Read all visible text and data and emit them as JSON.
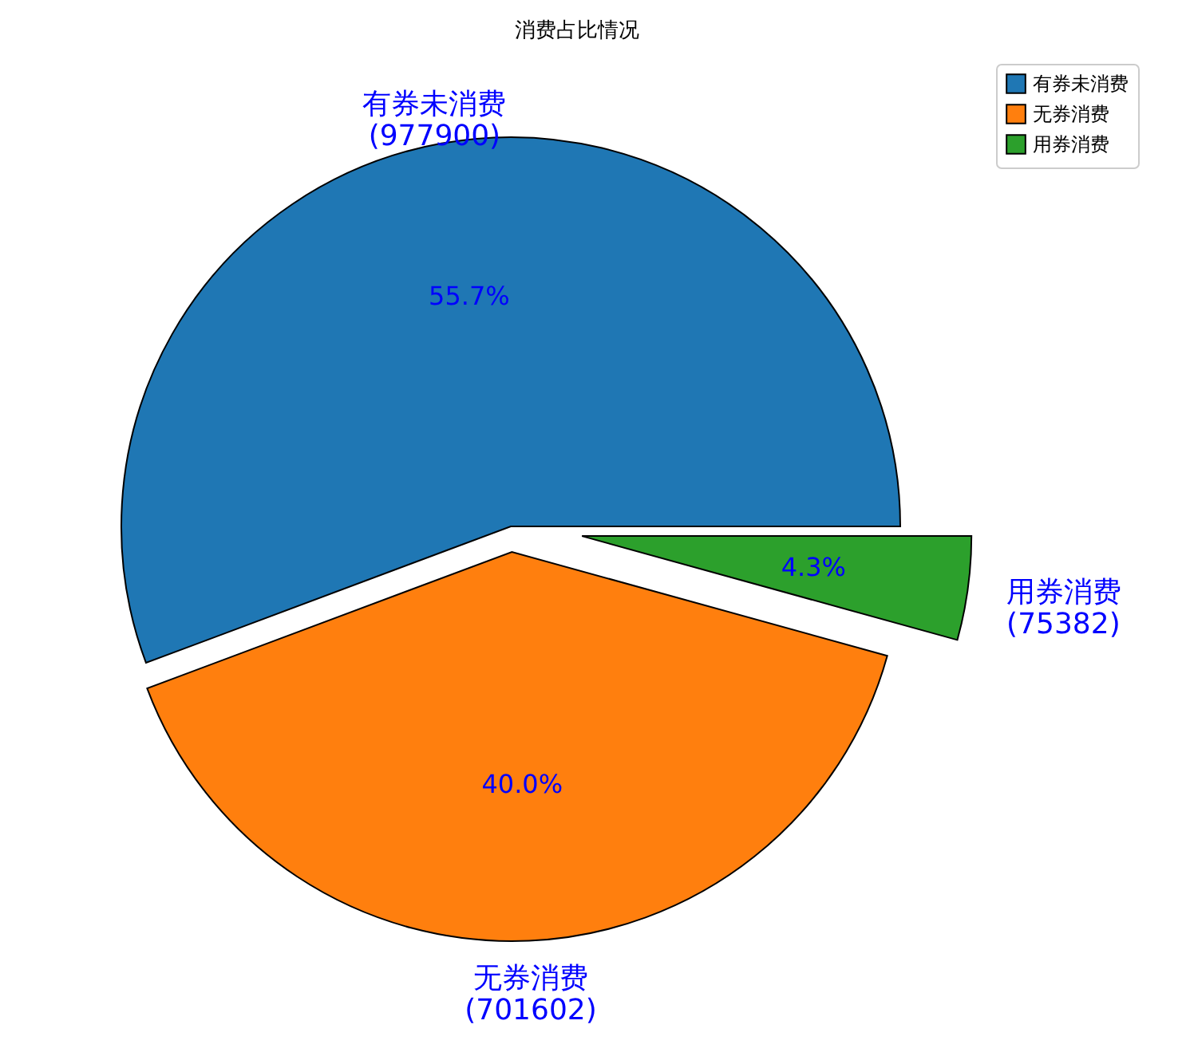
{
  "chart_data": {
    "type": "pie",
    "title": "消费占比情况",
    "categories": [
      "有券未消费",
      "无券消费",
      "用券消费"
    ],
    "values": [
      55.7,
      40.0,
      4.3
    ],
    "annotations": [
      "(977900)",
      "(701602)",
      "(75382)"
    ],
    "colors": [
      "#1f77b4",
      "#ff7f0e",
      "#2ca02c"
    ],
    "value_labels": [
      "55.7%",
      "40.0%",
      "4.3%"
    ],
    "legend": "top right"
  }
}
